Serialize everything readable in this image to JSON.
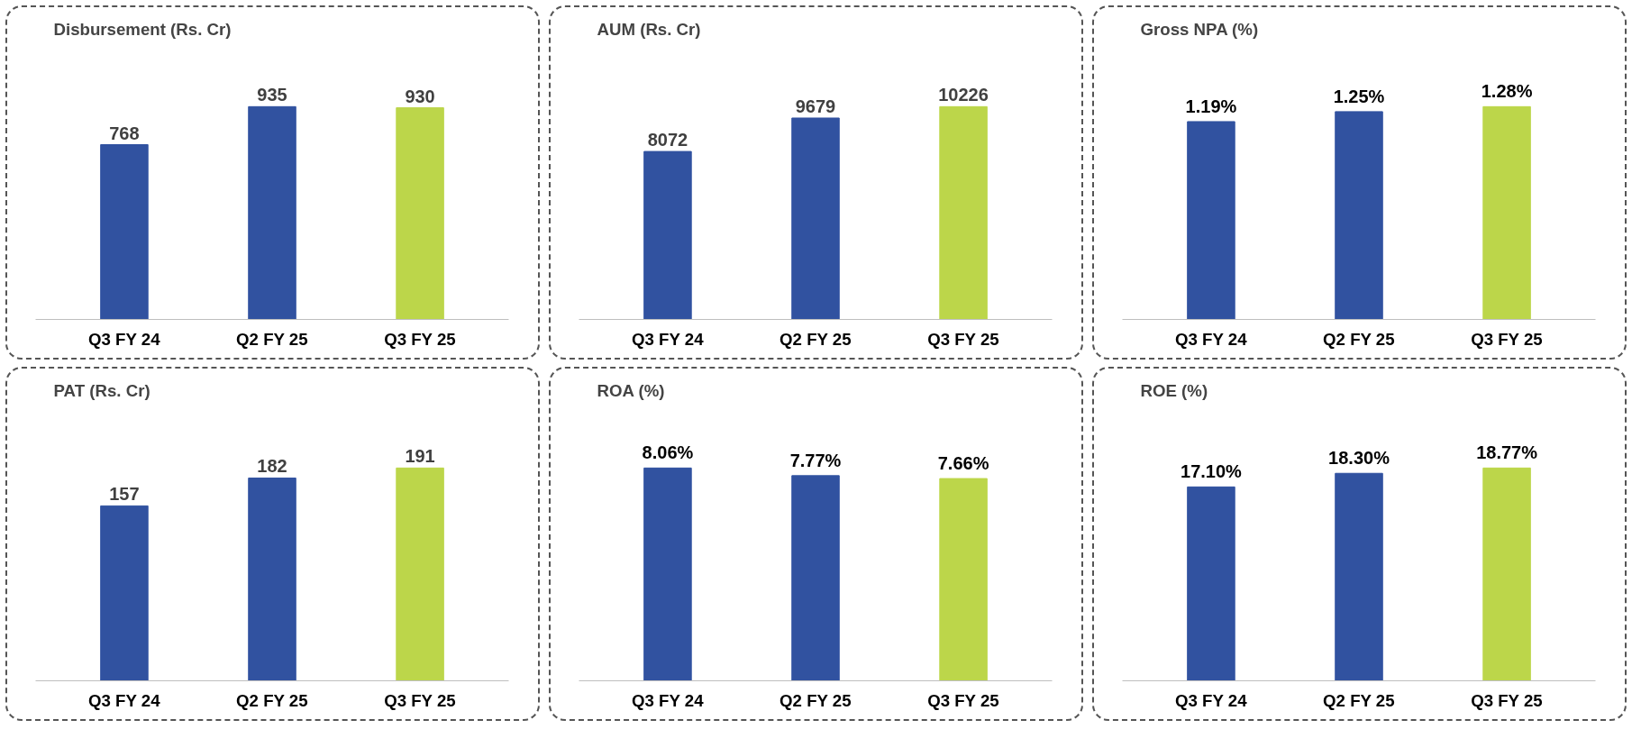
{
  "chart_data": [
    {
      "type": "bar",
      "title": "Disbursement (Rs. Cr)",
      "categories": [
        "Q3 FY 24",
        "Q2 FY 25",
        "Q3 FY 25"
      ],
      "values": [
        768,
        935,
        930
      ],
      "colors": [
        "#3152a0",
        "#3152a0",
        "#bcd64a"
      ],
      "value_labels": [
        "768",
        "935",
        "930"
      ]
    },
    {
      "type": "bar",
      "title": "AUM (Rs. Cr)",
      "categories": [
        "Q3 FY 24",
        "Q2 FY 25",
        "Q3 FY 25"
      ],
      "values": [
        8072,
        9679,
        10226
      ],
      "colors": [
        "#3152a0",
        "#3152a0",
        "#bcd64a"
      ],
      "value_labels": [
        "8072",
        "9679",
        "10226"
      ]
    },
    {
      "type": "bar",
      "title": "Gross NPA (%)",
      "categories": [
        "Q3 FY 24",
        "Q2 FY 25",
        "Q3 FY 25"
      ],
      "values": [
        1.19,
        1.25,
        1.28
      ],
      "colors": [
        "#3152a0",
        "#3152a0",
        "#bcd64a"
      ],
      "value_labels": [
        "1.19%",
        "1.25%",
        "1.28%"
      ]
    },
    {
      "type": "bar",
      "title": "PAT (Rs. Cr)",
      "categories": [
        "Q3 FY 24",
        "Q2 FY 25",
        "Q3 FY 25"
      ],
      "values": [
        157,
        182,
        191
      ],
      "colors": [
        "#3152a0",
        "#3152a0",
        "#bcd64a"
      ],
      "value_labels": [
        "157",
        "182",
        "191"
      ]
    },
    {
      "type": "bar",
      "title": "ROA (%)",
      "categories": [
        "Q3 FY 24",
        "Q2 FY 25",
        "Q3 FY 25"
      ],
      "values": [
        8.06,
        7.77,
        7.66
      ],
      "colors": [
        "#3152a0",
        "#3152a0",
        "#bcd64a"
      ],
      "value_labels": [
        "8.06%",
        "7.77%",
        "7.66%"
      ]
    },
    {
      "type": "bar",
      "title": "ROE (%)",
      "categories": [
        "Q3 FY 24",
        "Q2 FY 25",
        "Q3 FY 25"
      ],
      "values": [
        17.1,
        18.3,
        18.77
      ],
      "colors": [
        "#3152a0",
        "#3152a0",
        "#bcd64a"
      ],
      "value_labels": [
        "17.10%",
        "18.30%",
        "18.77%"
      ]
    }
  ]
}
